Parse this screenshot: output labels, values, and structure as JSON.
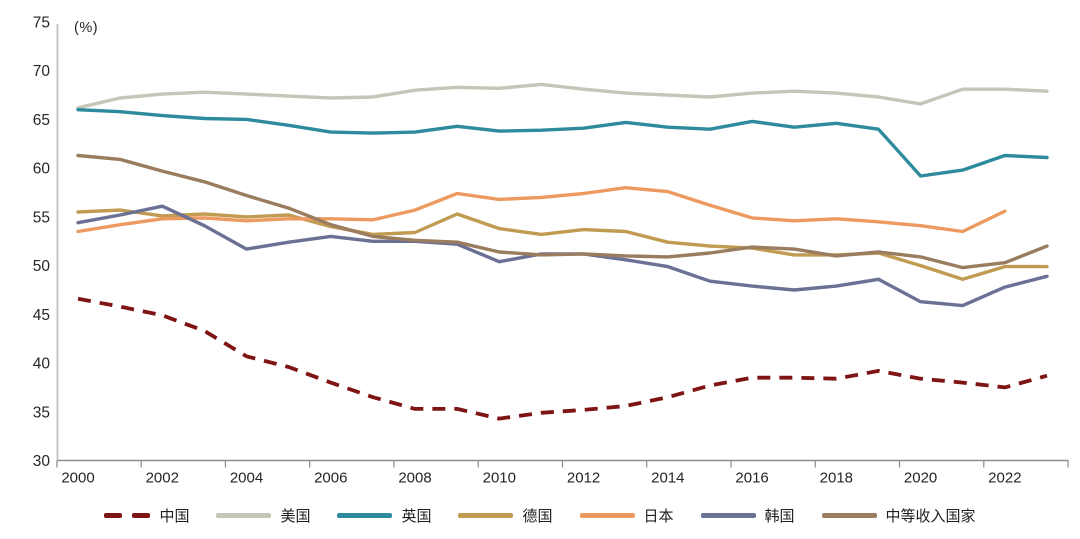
{
  "figure": {
    "unit_label": "(%)",
    "background": "#ffffff",
    "text_color": "#262626",
    "axis_color": "#8c8c8c",
    "y_axis_line_color": "#bfbfbf"
  },
  "chart_data": {
    "type": "line",
    "title": "",
    "xlabel": "",
    "ylabel": "(%)",
    "ylim": [
      30,
      75
    ],
    "y_tick_step": 5,
    "y_tick_labels": [
      "75",
      "70",
      "65",
      "60",
      "55",
      "50",
      "45",
      "40",
      "35",
      "30"
    ],
    "x": [
      2000,
      2001,
      2002,
      2003,
      2004,
      2005,
      2006,
      2007,
      2008,
      2009,
      2010,
      2011,
      2012,
      2013,
      2014,
      2015,
      2016,
      2017,
      2018,
      2019,
      2020,
      2021,
      2022,
      2023
    ],
    "x_tick_labels": [
      "2000",
      "2002",
      "2004",
      "2006",
      "2008",
      "2010",
      "2012",
      "2014",
      "2016",
      "2018",
      "2020",
      "2022"
    ],
    "grid": false,
    "legend_position": "bottom",
    "series": [
      {
        "name": "中国",
        "color": "#7E1414",
        "style": "dashed",
        "values": [
          46.6,
          45.8,
          44.9,
          43.3,
          40.7,
          39.6,
          38.0,
          36.5,
          35.3,
          35.3,
          34.3,
          34.9,
          35.2,
          35.6,
          36.5,
          37.7,
          38.5,
          38.5,
          38.4,
          39.2,
          38.4,
          38.0,
          37.5,
          38.7
        ]
      },
      {
        "name": "美国",
        "color": "#C5C6B7",
        "style": "solid",
        "values": [
          66.2,
          67.2,
          67.6,
          67.8,
          67.6,
          67.4,
          67.2,
          67.3,
          68.0,
          68.3,
          68.2,
          68.6,
          68.1,
          67.7,
          67.5,
          67.3,
          67.7,
          67.9,
          67.7,
          67.3,
          66.6,
          68.1,
          68.1,
          67.9
        ]
      },
      {
        "name": "英国",
        "color": "#2E8B9D",
        "style": "solid",
        "values": [
          66.0,
          65.8,
          65.4,
          65.1,
          65.0,
          64.4,
          63.7,
          63.6,
          63.7,
          64.3,
          63.8,
          63.9,
          64.1,
          64.7,
          64.2,
          64.0,
          64.8,
          64.2,
          64.6,
          64.0,
          59.2,
          59.8,
          61.3,
          61.1
        ]
      },
      {
        "name": "德国",
        "color": "#C09B51",
        "style": "solid",
        "values": [
          55.5,
          55.7,
          55.1,
          55.3,
          55.0,
          55.2,
          54.0,
          53.2,
          53.4,
          55.3,
          53.8,
          53.2,
          53.7,
          53.5,
          52.4,
          52.0,
          51.8,
          51.1,
          51.1,
          51.3,
          50.0,
          48.6,
          49.9,
          49.9
        ]
      },
      {
        "name": "日本",
        "color": "#EC9A60",
        "style": "solid",
        "values": [
          53.5,
          54.2,
          54.8,
          54.9,
          54.6,
          54.8,
          54.8,
          54.7,
          55.7,
          57.4,
          56.8,
          57.0,
          57.4,
          58.0,
          57.6,
          56.2,
          54.9,
          54.6,
          54.8,
          54.5,
          54.1,
          53.5,
          55.6,
          null
        ]
      },
      {
        "name": "韩国",
        "color": "#6B7095",
        "style": "solid",
        "values": [
          54.4,
          55.2,
          56.1,
          54.1,
          51.7,
          52.4,
          53.0,
          52.5,
          52.5,
          52.2,
          50.4,
          51.2,
          51.2,
          50.6,
          49.9,
          48.4,
          47.9,
          47.5,
          47.9,
          48.6,
          46.3,
          45.9,
          47.8,
          48.9
        ]
      },
      {
        "name": "中等收入国家",
        "color": "#9A7C5E",
        "style": "solid",
        "values": [
          61.3,
          60.9,
          59.7,
          58.6,
          57.2,
          55.9,
          54.2,
          53.0,
          52.6,
          52.4,
          51.4,
          51.1,
          51.2,
          51.0,
          50.9,
          51.3,
          51.9,
          51.7,
          51.0,
          51.4,
          50.9,
          49.8,
          50.3,
          52.0
        ]
      }
    ]
  }
}
